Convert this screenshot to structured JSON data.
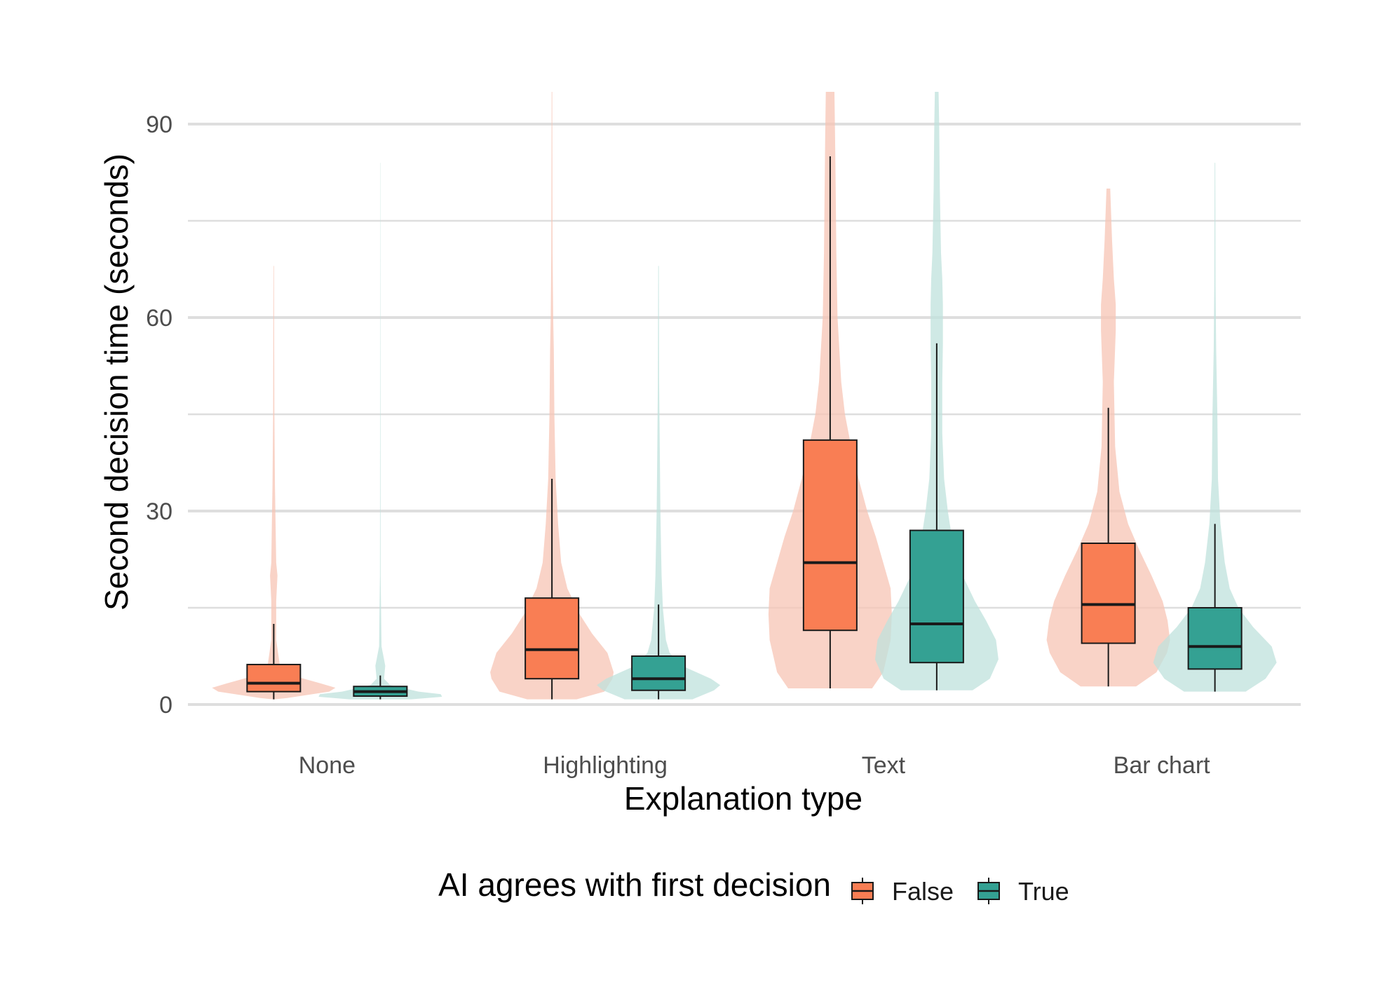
{
  "chart_data": {
    "type": "violin-box",
    "xlabel": "Explanation type",
    "ylabel": "Second decision time (seconds)",
    "ylim": [
      0,
      95
    ],
    "yticks": [
      0,
      30,
      60,
      90
    ],
    "grid": true,
    "legend": {
      "title": "AI agrees with first decision",
      "placement": "bottom"
    },
    "categories": [
      "None",
      "Highlighting",
      "Text",
      "Bar chart"
    ],
    "series": [
      {
        "name": "False",
        "color": "#f97e54",
        "violin_color": "#f7c4b4",
        "boxes": [
          {
            "whisker_low": 0.8,
            "q1": 2.0,
            "median": 3.3,
            "q3": 6.2,
            "whisker_high": 12.5,
            "violin": [
              [
                0.8,
                0.01
              ],
              [
                1.0,
                0.22
              ],
              [
                2.0,
                0.9
              ],
              [
                2.6,
                1.0
              ],
              [
                3.3,
                0.75
              ],
              [
                4.5,
                0.3
              ],
              [
                6,
                0.1
              ],
              [
                10,
                0.04
              ],
              [
                16,
                0.04
              ],
              [
                20,
                0.06
              ],
              [
                22,
                0.04
              ],
              [
                28,
                0.03
              ],
              [
                34,
                0.02
              ],
              [
                45,
                0.01
              ],
              [
                60,
                0.006
              ],
              [
                68,
                0.004
              ]
            ]
          },
          {
            "whisker_low": 0.8,
            "q1": 4.0,
            "median": 8.5,
            "q3": 16.5,
            "whisker_high": 35.0,
            "violin": [
              [
                0.8,
                0.4
              ],
              [
                2,
                0.85
              ],
              [
                4,
                0.98
              ],
              [
                5,
                1.0
              ],
              [
                8,
                0.9
              ],
              [
                11,
                0.65
              ],
              [
                14,
                0.45
              ],
              [
                18,
                0.25
              ],
              [
                22,
                0.15
              ],
              [
                28,
                0.1
              ],
              [
                35,
                0.06
              ],
              [
                45,
                0.04
              ],
              [
                55,
                0.03
              ],
              [
                60,
                0.02
              ],
              [
                70,
                0.01
              ],
              [
                80,
                0.008
              ],
              [
                95,
                0.005
              ]
            ]
          },
          {
            "whisker_low": 2.5,
            "q1": 11.5,
            "median": 22.0,
            "q3": 41.0,
            "whisker_high": 85.0,
            "violin": [
              [
                2.5,
                0.68
              ],
              [
                5,
                0.86
              ],
              [
                10,
                0.98
              ],
              [
                14,
                1.0
              ],
              [
                18,
                0.98
              ],
              [
                22,
                0.86
              ],
              [
                26,
                0.74
              ],
              [
                30,
                0.6
              ],
              [
                35,
                0.46
              ],
              [
                40,
                0.34
              ],
              [
                45,
                0.24
              ],
              [
                50,
                0.18
              ],
              [
                60,
                0.12
              ],
              [
                70,
                0.1
              ],
              [
                80,
                0.09
              ],
              [
                88,
                0.08
              ],
              [
                95,
                0.07
              ]
            ]
          },
          {
            "whisker_low": 2.8,
            "q1": 9.5,
            "median": 15.5,
            "q3": 25.0,
            "whisker_high": 46.0,
            "violin": [
              [
                2.8,
                0.45
              ],
              [
                5,
                0.78
              ],
              [
                8,
                0.95
              ],
              [
                10,
                1.0
              ],
              [
                13,
                0.96
              ],
              [
                16,
                0.88
              ],
              [
                20,
                0.7
              ],
              [
                24,
                0.5
              ],
              [
                28,
                0.32
              ],
              [
                33,
                0.18
              ],
              [
                40,
                0.11
              ],
              [
                50,
                0.09
              ],
              [
                58,
                0.12
              ],
              [
                62,
                0.12
              ],
              [
                66,
                0.09
              ],
              [
                72,
                0.06
              ],
              [
                80,
                0.03
              ]
            ]
          }
        ]
      },
      {
        "name": "True",
        "color": "#34a193",
        "violin_color": "#bfe1dc",
        "boxes": [
          {
            "whisker_low": 0.8,
            "q1": 1.3,
            "median": 2.0,
            "q3": 2.8,
            "whisker_high": 4.5,
            "violin": [
              [
                0.8,
                0.5
              ],
              [
                1.2,
                1.0
              ],
              [
                1.6,
                0.98
              ],
              [
                2,
                0.62
              ],
              [
                3,
                0.16
              ],
              [
                4,
                0.06
              ],
              [
                6,
                0.08
              ],
              [
                7,
                0.06
              ],
              [
                9,
                0.02
              ],
              [
                20,
                0.005
              ],
              [
                40,
                0.004
              ],
              [
                60,
                0.003
              ],
              [
                84,
                0.002
              ]
            ]
          },
          {
            "whisker_low": 0.8,
            "q1": 2.2,
            "median": 4.0,
            "q3": 7.5,
            "whisker_high": 15.5,
            "violin": [
              [
                0.8,
                0.55
              ],
              [
                2.2,
                0.9
              ],
              [
                3,
                1.0
              ],
              [
                4,
                0.85
              ],
              [
                6,
                0.38
              ],
              [
                8,
                0.18
              ],
              [
                10,
                0.12
              ],
              [
                15,
                0.07
              ],
              [
                20,
                0.05
              ],
              [
                25,
                0.04
              ],
              [
                30,
                0.03
              ],
              [
                40,
                0.02
              ],
              [
                50,
                0.01
              ],
              [
                68,
                0.005
              ]
            ]
          },
          {
            "whisker_low": 2.2,
            "q1": 6.5,
            "median": 12.5,
            "q3": 27.0,
            "whisker_high": 56.0,
            "violin": [
              [
                2.2,
                0.58
              ],
              [
                4,
                0.86
              ],
              [
                7,
                1.0
              ],
              [
                10,
                0.96
              ],
              [
                13,
                0.8
              ],
              [
                16,
                0.62
              ],
              [
                20,
                0.42
              ],
              [
                25,
                0.26
              ],
              [
                30,
                0.18
              ],
              [
                35,
                0.12
              ],
              [
                42,
                0.09
              ],
              [
                50,
                0.09
              ],
              [
                56,
                0.1
              ],
              [
                62,
                0.1
              ],
              [
                66,
                0.09
              ],
              [
                70,
                0.07
              ],
              [
                80,
                0.05
              ],
              [
                90,
                0.04
              ],
              [
                95,
                0.03
              ]
            ]
          },
          {
            "whisker_low": 2.0,
            "q1": 5.5,
            "median": 9.0,
            "q3": 15.0,
            "whisker_high": 28.0,
            "violin": [
              [
                2.0,
                0.5
              ],
              [
                4,
                0.82
              ],
              [
                6.5,
                1.0
              ],
              [
                9,
                0.92
              ],
              [
                12,
                0.62
              ],
              [
                15,
                0.38
              ],
              [
                18,
                0.24
              ],
              [
                22,
                0.16
              ],
              [
                28,
                0.09
              ],
              [
                35,
                0.05
              ],
              [
                45,
                0.04
              ],
              [
                55,
                0.02
              ],
              [
                65,
                0.01
              ],
              [
                84,
                0.005
              ]
            ]
          }
        ]
      }
    ]
  }
}
